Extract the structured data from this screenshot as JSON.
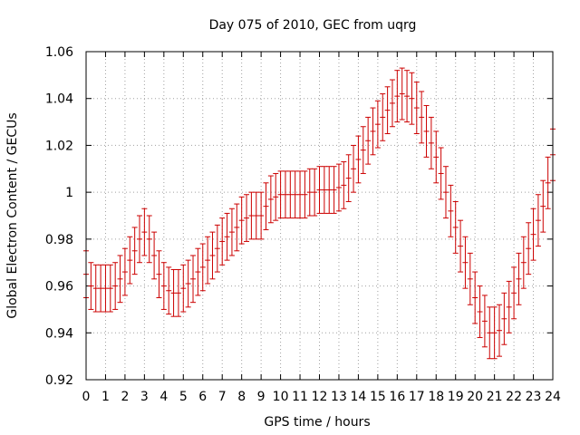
{
  "chart_data": {
    "type": "scatter",
    "title": "Day 075 of 2010, GEC from uqrg",
    "xlabel": "GPS time / hours",
    "ylabel": "Global Electron Content / GECUs",
    "xlim": [
      0,
      24
    ],
    "ylim": [
      0.92,
      1.06
    ],
    "xticks": [
      "0",
      "1",
      "2",
      "3",
      "4",
      "5",
      "6",
      "7",
      "8",
      "9",
      "10",
      "11",
      "12",
      "13",
      "14",
      "15",
      "16",
      "17",
      "18",
      "19",
      "20",
      "21",
      "22",
      "23",
      "24"
    ],
    "yticks": [
      "0.92",
      "0.94",
      "0.96",
      "0.98",
      "1",
      "1.02",
      "1.04",
      "1.06"
    ],
    "grid": true,
    "color": "#cc0000",
    "series": [
      {
        "x": [
          0,
          0.25,
          0.5,
          0.75,
          1,
          1.25,
          1.5,
          1.75,
          2,
          2.25,
          2.5,
          2.75,
          3,
          3.25,
          3.5,
          3.75,
          4,
          4.25,
          4.5,
          4.75,
          5,
          5.25,
          5.5,
          5.75,
          6,
          6.25,
          6.5,
          6.75,
          7,
          7.25,
          7.5,
          7.75,
          8,
          8.25,
          8.5,
          8.75,
          9,
          9.25,
          9.5,
          9.75,
          10,
          10.25,
          10.5,
          10.75,
          11,
          11.25,
          11.5,
          11.75,
          12,
          12.25,
          12.5,
          12.75,
          13,
          13.25,
          13.5,
          13.75,
          14,
          14.25,
          14.5,
          14.75,
          15,
          15.25,
          15.5,
          15.75,
          16,
          16.25,
          16.5,
          16.75,
          17,
          17.25,
          17.5,
          17.75,
          18,
          18.25,
          18.5,
          18.75,
          19,
          19.25,
          19.5,
          19.75,
          20,
          20.25,
          20.5,
          20.75,
          21,
          21.25,
          21.5,
          21.75,
          22,
          22.25,
          22.5,
          22.75,
          23,
          23.25,
          23.5,
          23.75,
          24
        ],
        "y": [
          0.965,
          0.96,
          0.959,
          0.959,
          0.959,
          0.959,
          0.96,
          0.963,
          0.966,
          0.971,
          0.975,
          0.98,
          0.983,
          0.98,
          0.973,
          0.965,
          0.96,
          0.958,
          0.957,
          0.957,
          0.959,
          0.961,
          0.963,
          0.966,
          0.968,
          0.971,
          0.973,
          0.976,
          0.979,
          0.981,
          0.983,
          0.985,
          0.988,
          0.989,
          0.99,
          0.99,
          0.99,
          0.994,
          0.997,
          0.998,
          0.999,
          0.999,
          0.999,
          0.999,
          0.999,
          0.999,
          1.0,
          1.0,
          1.001,
          1.001,
          1.001,
          1.001,
          1.002,
          1.003,
          1.006,
          1.01,
          1.014,
          1.018,
          1.022,
          1.026,
          1.029,
          1.032,
          1.035,
          1.038,
          1.041,
          1.042,
          1.041,
          1.04,
          1.036,
          1.032,
          1.026,
          1.021,
          1.015,
          1.008,
          1.0,
          0.992,
          0.985,
          0.977,
          0.97,
          0.963,
          0.955,
          0.949,
          0.945,
          0.94,
          0.94,
          0.941,
          0.946,
          0.951,
          0.957,
          0.963,
          0.97,
          0.976,
          0.982,
          0.988,
          0.994,
          1.004,
          1.016
        ],
        "err": [
          0.01,
          0.01,
          0.01,
          0.01,
          0.01,
          0.01,
          0.01,
          0.01,
          0.01,
          0.01,
          0.01,
          0.01,
          0.01,
          0.01,
          0.01,
          0.01,
          0.01,
          0.01,
          0.01,
          0.01,
          0.01,
          0.01,
          0.01,
          0.01,
          0.01,
          0.01,
          0.01,
          0.01,
          0.01,
          0.01,
          0.01,
          0.01,
          0.01,
          0.01,
          0.01,
          0.01,
          0.01,
          0.01,
          0.01,
          0.01,
          0.01,
          0.01,
          0.01,
          0.01,
          0.01,
          0.01,
          0.01,
          0.01,
          0.01,
          0.01,
          0.01,
          0.01,
          0.01,
          0.01,
          0.01,
          0.01,
          0.01,
          0.01,
          0.01,
          0.01,
          0.01,
          0.01,
          0.01,
          0.01,
          0.011,
          0.011,
          0.011,
          0.011,
          0.011,
          0.011,
          0.011,
          0.011,
          0.011,
          0.011,
          0.011,
          0.011,
          0.011,
          0.011,
          0.011,
          0.011,
          0.011,
          0.011,
          0.011,
          0.011,
          0.011,
          0.011,
          0.011,
          0.011,
          0.011,
          0.011,
          0.011,
          0.011,
          0.011,
          0.011,
          0.011,
          0.011,
          0.011
        ]
      }
    ]
  }
}
